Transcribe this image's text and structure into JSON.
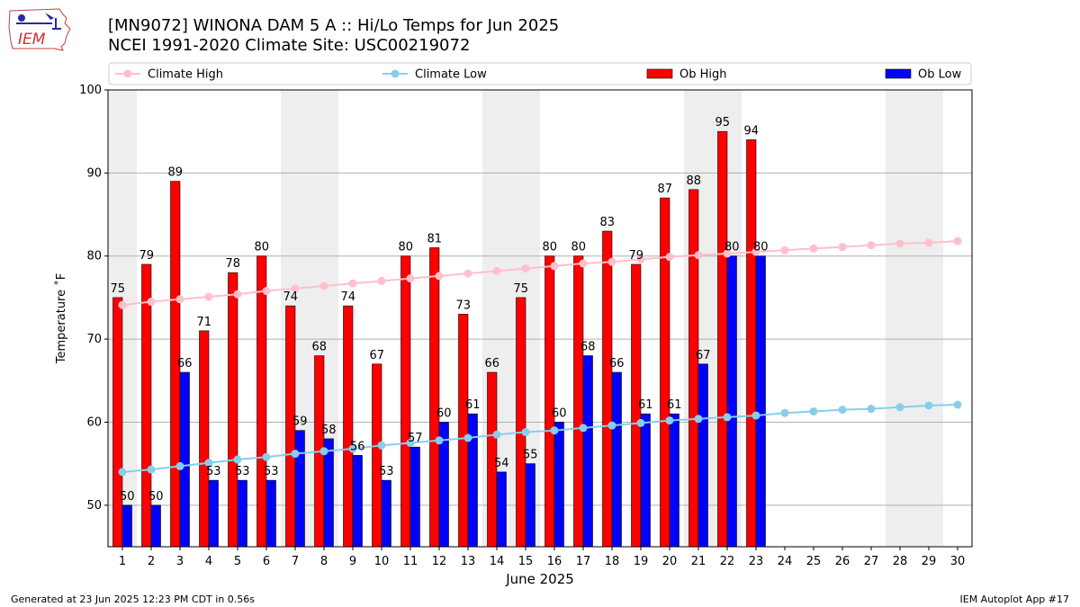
{
  "header": {
    "title_line1": "[MN9072] WINONA DAM 5 A :: Hi/Lo Temps for Jun 2025",
    "title_line2": "NCEI 1991-2020 Climate Site: USC00219072",
    "logo_text": "IEM"
  },
  "footer": {
    "generated": "Generated at 23 Jun 2025 12:23 PM CDT in 0.56s",
    "app": "IEM Autoplot App #17"
  },
  "colors": {
    "ob_high": "#ff0000",
    "ob_low": "#0000ff",
    "climate_high": "#ffc0cb",
    "climate_low": "#87ceeb",
    "weekend_shade": "#eeeeee",
    "grid": "#b0b0b0"
  },
  "chart_data": {
    "type": "bar",
    "xlabel": "June 2025",
    "ylabel": "Temperature ˚F",
    "ylim": [
      45,
      100
    ],
    "yticks": [
      50,
      60,
      70,
      80,
      90,
      100
    ],
    "grid": "horizontal",
    "legend_placement": "top",
    "weekend_shading": [
      [
        1,
        1
      ],
      [
        7,
        8
      ],
      [
        14,
        15
      ],
      [
        21,
        22
      ],
      [
        28,
        29
      ]
    ],
    "categories": [
      1,
      2,
      3,
      4,
      5,
      6,
      7,
      8,
      9,
      10,
      11,
      12,
      13,
      14,
      15,
      16,
      17,
      18,
      19,
      20,
      21,
      22,
      23,
      24,
      25,
      26,
      27,
      28,
      29,
      30
    ],
    "series": [
      {
        "name": "Climate High",
        "kind": "line",
        "values": [
          74.1,
          74.5,
          74.8,
          75.1,
          75.4,
          75.8,
          76.1,
          76.4,
          76.7,
          77.0,
          77.3,
          77.6,
          77.9,
          78.2,
          78.5,
          78.8,
          79.1,
          79.3,
          79.6,
          79.9,
          80.1,
          80.3,
          80.5,
          80.7,
          80.9,
          81.1,
          81.3,
          81.5,
          81.6,
          81.8
        ]
      },
      {
        "name": "Climate Low",
        "kind": "line",
        "values": [
          54.0,
          54.3,
          54.7,
          55.1,
          55.5,
          55.8,
          56.2,
          56.5,
          56.8,
          57.2,
          57.5,
          57.8,
          58.1,
          58.5,
          58.8,
          59.0,
          59.3,
          59.6,
          59.9,
          60.2,
          60.4,
          60.6,
          60.8,
          61.1,
          61.3,
          61.5,
          61.6,
          61.8,
          62.0,
          62.1
        ]
      },
      {
        "name": "Ob High",
        "kind": "bar",
        "values": [
          75,
          79,
          89,
          71,
          78,
          80,
          74,
          68,
          74,
          67,
          80,
          81,
          73,
          66,
          75,
          80,
          80,
          83,
          79,
          87,
          88,
          95,
          94,
          null,
          null,
          null,
          null,
          null,
          null,
          null
        ]
      },
      {
        "name": "Ob Low",
        "kind": "bar",
        "values": [
          50,
          50,
          66,
          53,
          53,
          53,
          59,
          58,
          56,
          53,
          57,
          60,
          61,
          54,
          55,
          60,
          68,
          66,
          61,
          61,
          67,
          80,
          80,
          null,
          null,
          null,
          null,
          null,
          null,
          null
        ]
      }
    ]
  }
}
